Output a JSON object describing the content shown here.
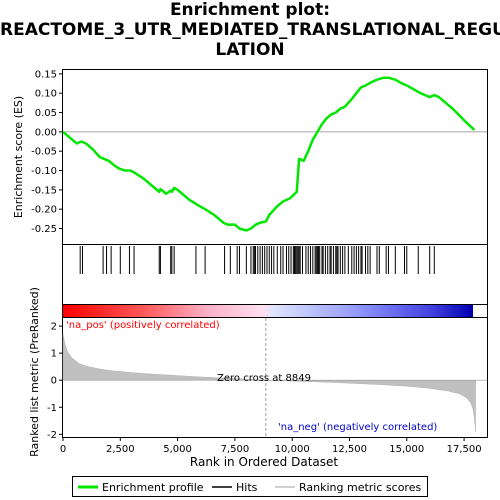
{
  "title_lines": [
    "Enrichment plot:",
    "REACTOME_3_UTR_MEDIATED_TRANSLATIONAL_REGU",
    "LATION"
  ],
  "chart_data": {
    "type": "line",
    "xlabel": "Rank in Ordered Dataset",
    "ylabel_top": "Enrichment score (ES)",
    "ylabel_bottom": "Ranked list metric (PreRanked)",
    "xlim": [
      0,
      18500
    ],
    "x_ticks": [
      0,
      2500,
      5000,
      7500,
      10000,
      12500,
      15000,
      17500
    ],
    "x_tick_labels": [
      "0",
      "2,500",
      "5,000",
      "7,500",
      "10,000",
      "12,500",
      "15,000",
      "17,500"
    ],
    "es_ylim": [
      -0.29,
      0.16
    ],
    "es_ticks": [
      0.15,
      0.1,
      0.05,
      0.0,
      -0.05,
      -0.1,
      -0.15,
      -0.2,
      -0.25
    ],
    "es_tick_labels": [
      "0.15",
      "0.10",
      "0.05",
      "0.00",
      "-0.05",
      "-0.10",
      "-0.15",
      "-0.20",
      "-0.25"
    ],
    "metric_ylim": [
      -2.1,
      2.3
    ],
    "metric_ticks": [
      2,
      1,
      0,
      -1,
      -2
    ],
    "metric_tick_labels": [
      "2",
      "1",
      "0",
      "-1",
      "-2"
    ],
    "es_curve": [
      [
        0,
        0.0
      ],
      [
        300,
        -0.015
      ],
      [
        600,
        -0.03
      ],
      [
        800,
        -0.025
      ],
      [
        1000,
        -0.03
      ],
      [
        1300,
        -0.045
      ],
      [
        1600,
        -0.065
      ],
      [
        1800,
        -0.07
      ],
      [
        2000,
        -0.075
      ],
      [
        2200,
        -0.085
      ],
      [
        2450,
        -0.095
      ],
      [
        2700,
        -0.1
      ],
      [
        2950,
        -0.1
      ],
      [
        3100,
        -0.105
      ],
      [
        3500,
        -0.12
      ],
      [
        3900,
        -0.14
      ],
      [
        4200,
        -0.155
      ],
      [
        4250,
        -0.148
      ],
      [
        4500,
        -0.16
      ],
      [
        4700,
        -0.152
      ],
      [
        4750,
        -0.155
      ],
      [
        4850,
        -0.145
      ],
      [
        5000,
        -0.15
      ],
      [
        5500,
        -0.175
      ],
      [
        5900,
        -0.19
      ],
      [
        6200,
        -0.2
      ],
      [
        6600,
        -0.215
      ],
      [
        7000,
        -0.235
      ],
      [
        7200,
        -0.24
      ],
      [
        7500,
        -0.24
      ],
      [
        7700,
        -0.25
      ],
      [
        8000,
        -0.255
      ],
      [
        8200,
        -0.25
      ],
      [
        8400,
        -0.24
      ],
      [
        8600,
        -0.235
      ],
      [
        8849,
        -0.232
      ],
      [
        9000,
        -0.215
      ],
      [
        9300,
        -0.195
      ],
      [
        9600,
        -0.18
      ],
      [
        9900,
        -0.172
      ],
      [
        10200,
        -0.155
      ],
      [
        10300,
        -0.07
      ],
      [
        10500,
        -0.075
      ],
      [
        10700,
        -0.05
      ],
      [
        10900,
        -0.02
      ],
      [
        11100,
        0.0
      ],
      [
        11300,
        0.02
      ],
      [
        11500,
        0.035
      ],
      [
        11700,
        0.045
      ],
      [
        11900,
        0.05
      ],
      [
        12100,
        0.06
      ],
      [
        12300,
        0.065
      ],
      [
        12600,
        0.085
      ],
      [
        12800,
        0.1
      ],
      [
        13000,
        0.115
      ],
      [
        13200,
        0.12
      ],
      [
        13500,
        0.13
      ],
      [
        13700,
        0.135
      ],
      [
        14000,
        0.14
      ],
      [
        14200,
        0.14
      ],
      [
        14500,
        0.135
      ],
      [
        14800,
        0.125
      ],
      [
        15000,
        0.12
      ],
      [
        15300,
        0.11
      ],
      [
        15600,
        0.1
      ],
      [
        15800,
        0.095
      ],
      [
        16000,
        0.09
      ],
      [
        16200,
        0.095
      ],
      [
        16400,
        0.09
      ],
      [
        17000,
        0.06
      ],
      [
        17500,
        0.03
      ],
      [
        17950,
        0.005
      ]
    ],
    "hits": [
      750,
      850,
      1750,
      1900,
      2100,
      2500,
      2900,
      3100,
      4200,
      4250,
      4700,
      4750,
      4850,
      5800,
      6200,
      7050,
      7300,
      7600,
      7700,
      8000,
      8200,
      8300,
      8350,
      8400,
      8500,
      8600,
      8700,
      8800,
      8900,
      9000,
      9100,
      9200,
      9350,
      9500,
      9600,
      9750,
      9850,
      9950,
      10050,
      10100,
      10150,
      10200,
      10250,
      10300,
      10350,
      10450,
      10600,
      10700,
      10800,
      10900,
      11000,
      11050,
      11100,
      11150,
      11200,
      11300,
      11350,
      11450,
      11550,
      11650,
      11700,
      11800,
      11900,
      11950,
      12000,
      12100,
      12200,
      12300,
      12450,
      12600,
      12700,
      12800,
      12900,
      13000,
      13050,
      13200,
      13300,
      13400,
      13700,
      13800,
      14100,
      14200,
      14500,
      14900,
      15000,
      15500,
      16000,
      16200
    ],
    "metric_curve": [
      [
        0,
        1.7
      ],
      [
        80,
        1.35
      ],
      [
        200,
        1.05
      ],
      [
        400,
        0.82
      ],
      [
        700,
        0.62
      ],
      [
        1000,
        0.52
      ],
      [
        1500,
        0.43
      ],
      [
        2000,
        0.36
      ],
      [
        3000,
        0.28
      ],
      [
        4000,
        0.22
      ],
      [
        5000,
        0.17
      ],
      [
        6000,
        0.12
      ],
      [
        7000,
        0.08
      ],
      [
        8000,
        0.04
      ],
      [
        8849,
        0.0
      ],
      [
        10000,
        -0.03
      ],
      [
        11000,
        -0.06
      ],
      [
        12000,
        -0.09
      ],
      [
        13000,
        -0.13
      ],
      [
        14000,
        -0.17
      ],
      [
        15000,
        -0.22
      ],
      [
        16000,
        -0.3
      ],
      [
        16800,
        -0.4
      ],
      [
        17300,
        -0.5
      ],
      [
        17600,
        -0.65
      ],
      [
        17800,
        -0.85
      ],
      [
        17900,
        -1.1
      ],
      [
        17960,
        -1.5
      ],
      [
        18000,
        -1.9
      ]
    ],
    "zero_cross_rank": 8849,
    "zero_cross_label": "Zero cross at 8849",
    "pos_label": "'na_pos' (positively correlated)",
    "neg_label": "'na_neg' (negatively correlated)",
    "colors": {
      "es_line": "#00e600",
      "pos_label": "#ff0000",
      "neg_label": "#0000cc",
      "metric_fill": "#c0c0c0",
      "zero_line": "#a0a0a0"
    },
    "legend": {
      "entries": [
        "Enrichment profile",
        "Hits",
        "Ranking metric scores"
      ],
      "placement": "bottom"
    }
  }
}
